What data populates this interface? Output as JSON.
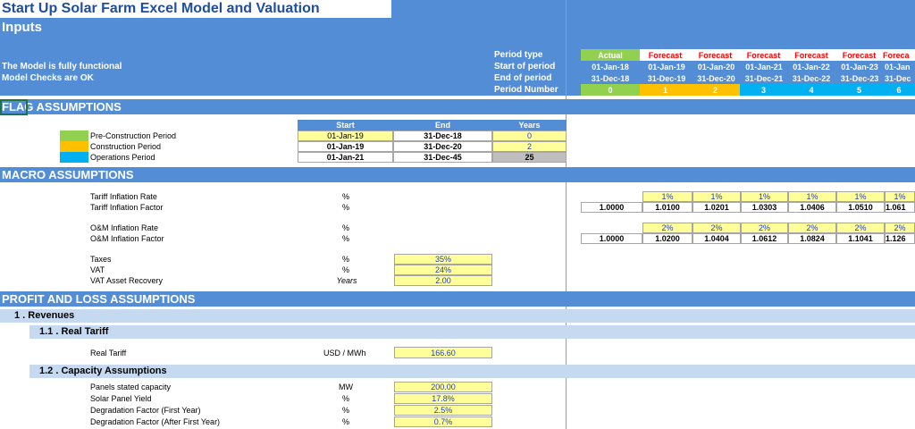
{
  "title": "Start Up Solar Farm Excel Model and Valuation",
  "subtitle": "Inputs",
  "status_lines": [
    "The Model is fully functional",
    "Model Checks are OK"
  ],
  "period_labels": [
    "Period type",
    "Start of period",
    "End of period",
    "Period Number"
  ],
  "timeline": {
    "types": [
      "Actual",
      "Forecast",
      "Forecast",
      "Forecast",
      "Forecast",
      "Forecast",
      "Foreca"
    ],
    "starts": [
      "01-Jan-18",
      "01-Jan-19",
      "01-Jan-20",
      "01-Jan-21",
      "01-Jan-22",
      "01-Jan-23",
      "01-Jan"
    ],
    "ends": [
      "31-Dec-18",
      "31-Dec-19",
      "31-Dec-20",
      "31-Dec-21",
      "31-Dec-22",
      "31-Dec-23",
      "31-Dec"
    ],
    "numbers": [
      "0",
      "1",
      "2",
      "3",
      "4",
      "5",
      "6"
    ]
  },
  "sections": {
    "flag": "FLAG ASSUMPTIONS",
    "macro": "MACRO ASSUMPTIONS",
    "pl": "PROFIT AND LOSS ASSUMPTIONS"
  },
  "flag_table": {
    "headers": [
      "Start",
      "End",
      "Years"
    ],
    "rows": [
      {
        "label": "Pre-Construction Period",
        "start": "01-Jan-19",
        "end": "31-Dec-18",
        "years": "0",
        "color": "#92d050"
      },
      {
        "label": "Construction Period",
        "start": "01-Jan-19",
        "end": "31-Dec-20",
        "years": "2",
        "color": "#ffc000"
      },
      {
        "label": "Operations Period",
        "start": "01-Jan-21",
        "end": "31-Dec-45",
        "years": "25",
        "color": "#00b0f0"
      }
    ]
  },
  "macro": {
    "tariff_rate_label": "Tariff Inflation Rate",
    "tariff_factor_label": "Tariff Inflation Factor",
    "om_rate_label": "O&M Inflation Rate",
    "om_factor_label": "O&M Inflation Factor",
    "pct_unit": "%",
    "tariff_rates": [
      "1%",
      "1%",
      "1%",
      "1%",
      "1%",
      "1%"
    ],
    "tariff_factors": [
      "1.0000",
      "1.0100",
      "1.0201",
      "1.0303",
      "1.0406",
      "1.0510",
      "1.061"
    ],
    "om_rates": [
      "2%",
      "2%",
      "2%",
      "2%",
      "2%",
      "2%"
    ],
    "om_factors": [
      "1.0000",
      "1.0200",
      "1.0404",
      "1.0612",
      "1.0824",
      "1.1041",
      "1.126"
    ],
    "taxes_label": "Taxes",
    "taxes_unit": "%",
    "taxes_value": "35%",
    "vat_label": "VAT",
    "vat_unit": "%",
    "vat_value": "24%",
    "vat_recovery_label": "VAT Asset Recovery",
    "vat_recovery_unit": "Years",
    "vat_recovery_value": "2.00"
  },
  "revenues": {
    "header": "1 . Revenues",
    "real_tariff_header": "1.1 . Real Tariff",
    "real_tariff_label": "Real Tariff",
    "real_tariff_unit": "USD / MWh",
    "real_tariff_value": "166.60",
    "capacity_header": "1.2 . Capacity Assumptions",
    "capacity_rows": [
      {
        "label": "Panels stated capacity",
        "unit": "MW",
        "value": "200.00"
      },
      {
        "label": "Solar Panel Yield",
        "unit": "%",
        "value": "17.8%"
      },
      {
        "label": "Degradation Factor (First Year)",
        "unit": "%",
        "value": "2.5%"
      },
      {
        "label": "Degradation Factor (After First Year)",
        "unit": "%",
        "value": "0.7%"
      }
    ]
  },
  "colors": {
    "header_blue": "#538dd5",
    "sub_blue": "#c5d9f1",
    "input_yellow": "#ffff99",
    "actual_green": "#92d050",
    "construction_orange": "#ffc000",
    "operations_cyan": "#00b0f0",
    "forecast_red": "#ff0000"
  }
}
